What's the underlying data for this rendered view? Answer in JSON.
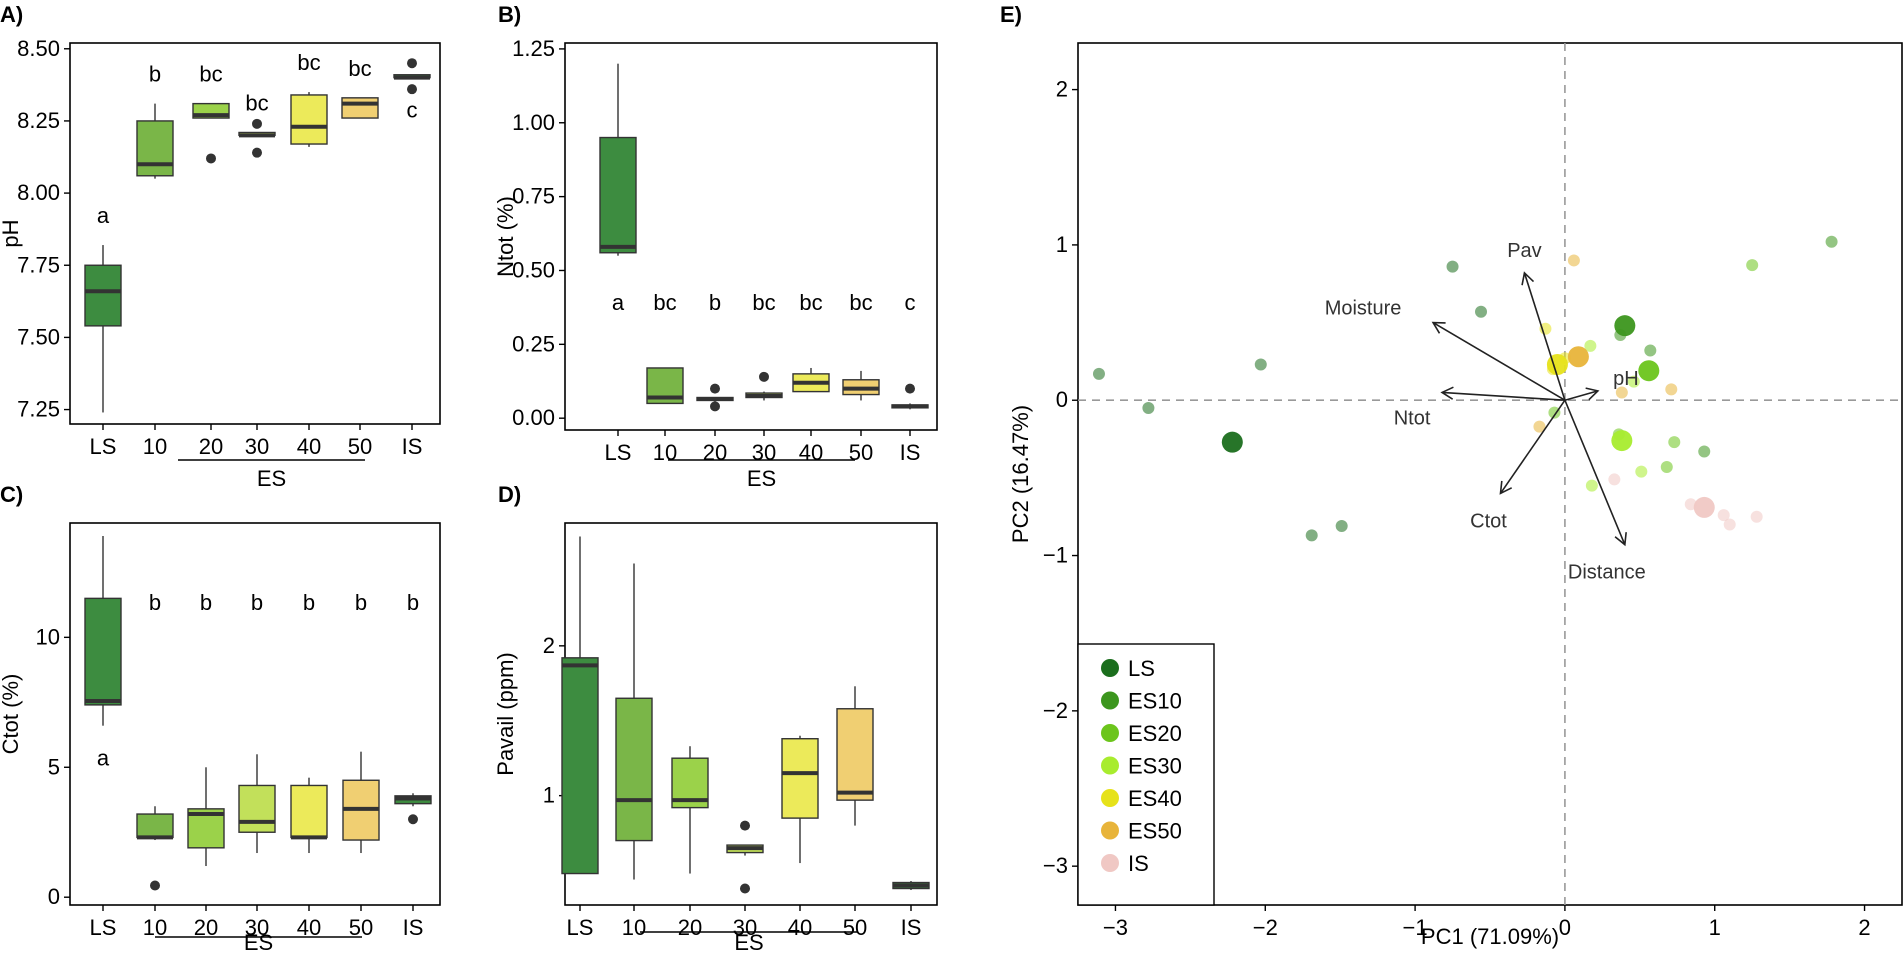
{
  "figure": {
    "panel_labels": [
      "A)",
      "B)",
      "C)",
      "D)",
      "E)"
    ],
    "group_axis_label": "ES"
  },
  "chart_data": [
    {
      "panel": "A)",
      "type": "box",
      "ylabel": "pH",
      "ylim": [
        7.2,
        8.52
      ],
      "yticks": [
        "7.25",
        "7.50",
        "7.75",
        "8.00",
        "8.25",
        "8.50"
      ],
      "ytick_values": [
        7.25,
        7.5,
        7.75,
        8.0,
        8.25,
        8.5
      ],
      "categories": [
        "LS",
        "10",
        "20",
        "30",
        "40",
        "50",
        "IS"
      ],
      "group_label": "ES",
      "colors": [
        "#3d8c40",
        "#7ab648",
        "#9bd24a",
        "#c2e05a",
        "#ecea5a",
        "#f0cf72",
        "#3d8c40"
      ],
      "boxes": [
        {
          "min": 7.24,
          "q1": 7.54,
          "median": 7.66,
          "q3": 7.75,
          "max": 7.82,
          "outliers": []
        },
        {
          "min": 8.05,
          "q1": 8.06,
          "median": 8.1,
          "q3": 8.25,
          "max": 8.31,
          "outliers": []
        },
        {
          "min": 8.26,
          "q1": 8.26,
          "median": 8.27,
          "q3": 8.31,
          "max": 8.31,
          "outliers": [
            8.12
          ]
        },
        {
          "min": 8.2,
          "q1": 8.2,
          "median": 8.2,
          "q3": 8.21,
          "max": 8.21,
          "outliers": [
            8.24,
            8.14
          ]
        },
        {
          "min": 8.16,
          "q1": 8.17,
          "median": 8.23,
          "q3": 8.34,
          "max": 8.35,
          "outliers": []
        },
        {
          "min": 8.26,
          "q1": 8.26,
          "median": 8.31,
          "q3": 8.33,
          "max": 8.33,
          "outliers": []
        },
        {
          "min": 8.4,
          "q1": 8.4,
          "median": 8.4,
          "q3": 8.41,
          "max": 8.41,
          "outliers": [
            8.45,
            8.36
          ]
        }
      ],
      "letters": [
        "a",
        "b",
        "bc",
        "bc",
        "bc",
        "bc",
        "c"
      ]
    },
    {
      "panel": "B)",
      "type": "box",
      "ylabel": "Ntot (%)",
      "ylim": [
        -0.04,
        1.27
      ],
      "yticks": [
        "0.00",
        "0.25",
        "0.50",
        "0.75",
        "1.00",
        "1.25"
      ],
      "ytick_values": [
        0,
        0.25,
        0.5,
        0.75,
        1.0,
        1.25
      ],
      "categories": [
        "LS",
        "10",
        "20",
        "30",
        "40",
        "50",
        "IS"
      ],
      "group_label": "ES",
      "colors": [
        "#3d8c40",
        "#7ab648",
        "#9bd24a",
        "#c2e05a",
        "#ecea5a",
        "#f0cf72",
        "#3d8c40"
      ],
      "boxes": [
        {
          "min": 0.55,
          "q1": 0.56,
          "median": 0.58,
          "q3": 0.95,
          "max": 1.2,
          "outliers": []
        },
        {
          "min": 0.05,
          "q1": 0.05,
          "median": 0.07,
          "q3": 0.17,
          "max": 0.17,
          "outliers": []
        },
        {
          "min": 0.05,
          "q1": 0.06,
          "median": 0.065,
          "q3": 0.07,
          "max": 0.07,
          "outliers": [
            0.1,
            0.04
          ]
        },
        {
          "min": 0.06,
          "q1": 0.07,
          "median": 0.075,
          "q3": 0.085,
          "max": 0.09,
          "outliers": [
            0.14
          ]
        },
        {
          "min": 0.09,
          "q1": 0.09,
          "median": 0.12,
          "q3": 0.15,
          "max": 0.17,
          "outliers": []
        },
        {
          "min": 0.06,
          "q1": 0.08,
          "median": 0.1,
          "q3": 0.13,
          "max": 0.16,
          "outliers": []
        },
        {
          "min": 0.03,
          "q1": 0.035,
          "median": 0.04,
          "q3": 0.045,
          "max": 0.05,
          "outliers": [
            0.1
          ]
        }
      ],
      "letters": [
        "a",
        "bc",
        "b",
        "bc",
        "bc",
        "bc",
        "c"
      ]
    },
    {
      "panel": "C)",
      "type": "box",
      "ylabel": "Ctot (%)",
      "ylim": [
        -0.3,
        14.4
      ],
      "yticks": [
        "0",
        "5",
        "10"
      ],
      "ytick_values": [
        0,
        5,
        10
      ],
      "categories": [
        "LS",
        "10",
        "20",
        "30",
        "40",
        "50",
        "IS"
      ],
      "group_label": "ES",
      "colors": [
        "#3d8c40",
        "#7ab648",
        "#9bd24a",
        "#c2e05a",
        "#ecea5a",
        "#f0cf72",
        "#3d8c40"
      ],
      "boxes": [
        {
          "min": 6.6,
          "q1": 7.4,
          "median": 7.55,
          "q3": 11.5,
          "max": 13.9,
          "outliers": []
        },
        {
          "min": 2.2,
          "q1": 2.3,
          "median": 2.3,
          "q3": 3.2,
          "max": 3.5,
          "outliers": [
            0.45
          ]
        },
        {
          "min": 1.2,
          "q1": 1.9,
          "median": 3.2,
          "q3": 3.4,
          "max": 5.0,
          "outliers": []
        },
        {
          "min": 1.7,
          "q1": 2.5,
          "median": 2.9,
          "q3": 4.3,
          "max": 5.5,
          "outliers": []
        },
        {
          "min": 1.7,
          "q1": 2.3,
          "median": 2.3,
          "q3": 4.3,
          "max": 4.6,
          "outliers": []
        },
        {
          "min": 1.7,
          "q1": 2.2,
          "median": 3.4,
          "q3": 4.5,
          "max": 5.6,
          "outliers": []
        },
        {
          "min": 3.5,
          "q1": 3.6,
          "median": 3.8,
          "q3": 3.9,
          "max": 4.0,
          "outliers": [
            3.0
          ]
        }
      ],
      "letters": [
        "a",
        "b",
        "b",
        "b",
        "b",
        "b",
        "b"
      ]
    },
    {
      "panel": "D)",
      "type": "box",
      "ylabel": "Pavail (ppm)",
      "ylim": [
        0.27,
        2.82
      ],
      "yticks": [
        "1",
        "2"
      ],
      "ytick_values": [
        1,
        2
      ],
      "categories": [
        "LS",
        "10",
        "20",
        "30",
        "40",
        "50",
        "IS"
      ],
      "group_label": "ES",
      "colors": [
        "#3d8c40",
        "#7ab648",
        "#9bd24a",
        "#c2e05a",
        "#ecea5a",
        "#f0cf72",
        "#3d8c40"
      ],
      "boxes": [
        {
          "min": 0.48,
          "q1": 0.48,
          "median": 1.87,
          "q3": 1.92,
          "max": 2.73,
          "outliers": []
        },
        {
          "min": 0.44,
          "q1": 0.7,
          "median": 0.97,
          "q3": 1.65,
          "max": 2.55,
          "outliers": []
        },
        {
          "min": 0.48,
          "q1": 0.92,
          "median": 0.97,
          "q3": 1.25,
          "max": 1.33,
          "outliers": []
        },
        {
          "min": 0.6,
          "q1": 0.62,
          "median": 0.65,
          "q3": 0.67,
          "max": 0.67,
          "outliers": [
            0.8,
            0.38
          ]
        },
        {
          "min": 0.55,
          "q1": 0.85,
          "median": 1.15,
          "q3": 1.38,
          "max": 1.4,
          "outliers": []
        },
        {
          "min": 0.8,
          "q1": 0.97,
          "median": 1.02,
          "q3": 1.58,
          "max": 1.73,
          "outliers": []
        },
        {
          "min": 0.37,
          "q1": 0.38,
          "median": 0.4,
          "q3": 0.42,
          "max": 0.43,
          "outliers": []
        }
      ],
      "letters": []
    },
    {
      "panel": "E)",
      "type": "scatter",
      "xlabel": "PC1 (71.09%)",
      "ylabel": "PC2 (16.47%)",
      "xlim": [
        -3.25,
        2.25
      ],
      "ylim": [
        -3.25,
        2.3
      ],
      "xticks": [
        "−3",
        "−2",
        "−1",
        "0",
        "1",
        "2"
      ],
      "xtick_values": [
        -3,
        -2,
        -1,
        0,
        1,
        2
      ],
      "yticks": [
        "−3",
        "−2",
        "−1",
        "0",
        "1",
        "2"
      ],
      "ytick_values": [
        -3,
        -2,
        -1,
        0,
        1,
        2
      ],
      "legend_position": "bottom-left",
      "legend": [
        {
          "label": "LS",
          "color": "#1b6e1d"
        },
        {
          "label": "ES10",
          "color": "#3c961e"
        },
        {
          "label": "ES20",
          "color": "#6cc51c"
        },
        {
          "label": "ES30",
          "color": "#a8ec2e"
        },
        {
          "label": "ES40",
          "color": "#e6e21a"
        },
        {
          "label": "ES50",
          "color": "#e8b43a"
        },
        {
          "label": "IS",
          "color": "#f0c8c4"
        }
      ],
      "centroids": [
        {
          "group": "LS",
          "x": -2.22,
          "y": -0.27
        },
        {
          "group": "ES10",
          "x": 0.4,
          "y": 0.48
        },
        {
          "group": "ES20",
          "x": 0.56,
          "y": 0.19
        },
        {
          "group": "ES30",
          "x": 0.38,
          "y": -0.26
        },
        {
          "group": "ES40",
          "x": -0.05,
          "y": 0.23
        },
        {
          "group": "ES50",
          "x": 0.09,
          "y": 0.28
        },
        {
          "group": "IS",
          "x": 0.93,
          "y": -0.69
        }
      ],
      "points": [
        {
          "group": "LS",
          "x": -3.11,
          "y": 0.17
        },
        {
          "group": "LS",
          "x": -2.78,
          "y": -0.05
        },
        {
          "group": "LS",
          "x": -2.03,
          "y": 0.23
        },
        {
          "group": "LS",
          "x": -1.69,
          "y": -0.87
        },
        {
          "group": "LS",
          "x": -1.49,
          "y": -0.81
        },
        {
          "group": "LS",
          "x": -0.75,
          "y": 0.86
        },
        {
          "group": "LS",
          "x": -0.56,
          "y": 0.57
        },
        {
          "group": "ES10",
          "x": 1.78,
          "y": 1.02
        },
        {
          "group": "ES10",
          "x": 0.37,
          "y": 0.42
        },
        {
          "group": "ES10",
          "x": 0.57,
          "y": 0.32
        },
        {
          "group": "ES10",
          "x": 0.93,
          "y": -0.33
        },
        {
          "group": "ES20",
          "x": 1.25,
          "y": 0.87
        },
        {
          "group": "ES20",
          "x": 0.73,
          "y": -0.27
        },
        {
          "group": "ES20",
          "x": 0.36,
          "y": -0.22
        },
        {
          "group": "ES20",
          "x": -0.07,
          "y": -0.08
        },
        {
          "group": "ES20",
          "x": 0.68,
          "y": -0.43
        },
        {
          "group": "ES30",
          "x": 0.51,
          "y": -0.46
        },
        {
          "group": "ES30",
          "x": 0.17,
          "y": 0.35
        },
        {
          "group": "ES30",
          "x": 0.46,
          "y": 0.12
        },
        {
          "group": "ES30",
          "x": 0.18,
          "y": -0.55
        },
        {
          "group": "ES40",
          "x": -0.13,
          "y": 0.46
        },
        {
          "group": "ES40",
          "x": 0.0,
          "y": 0.27
        },
        {
          "group": "ES40",
          "x": -0.08,
          "y": 0.2
        },
        {
          "group": "ES50",
          "x": 0.06,
          "y": 0.9
        },
        {
          "group": "ES50",
          "x": 0.71,
          "y": 0.07
        },
        {
          "group": "ES50",
          "x": -0.17,
          "y": -0.17
        },
        {
          "group": "ES50",
          "x": 0.38,
          "y": 0.05
        },
        {
          "group": "IS",
          "x": 0.33,
          "y": -0.51
        },
        {
          "group": "IS",
          "x": 0.84,
          "y": -0.67
        },
        {
          "group": "IS",
          "x": 1.06,
          "y": -0.74
        },
        {
          "group": "IS",
          "x": 1.1,
          "y": -0.8
        },
        {
          "group": "IS",
          "x": 1.28,
          "y": -0.75
        }
      ],
      "loadings": [
        {
          "label": "Pav",
          "x": -0.27,
          "y": 0.82
        },
        {
          "label": "Moisture",
          "x": -0.88,
          "y": 0.5
        },
        {
          "label": "pH",
          "x": 0.22,
          "y": 0.06
        },
        {
          "label": "Ntot",
          "x": -0.82,
          "y": 0.05
        },
        {
          "label": "Ctot",
          "x": -0.43,
          "y": -0.6
        },
        {
          "label": "Distance",
          "x": 0.4,
          "y": -0.93
        }
      ]
    }
  ]
}
